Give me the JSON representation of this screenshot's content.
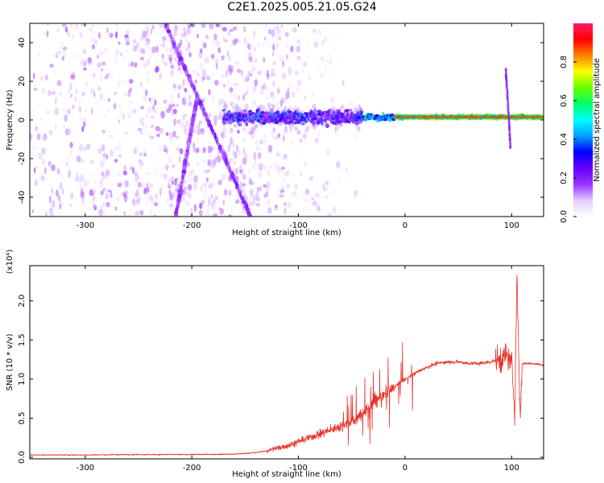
{
  "title": "C2E1.2025.005.21.05.G24",
  "colors": {
    "snr_line": "#e8322a",
    "spectrum_background": "#ffffff",
    "colormap": [
      "#ffffff",
      "#e6ccff",
      "#9933ff",
      "#6600ff",
      "#0000ff",
      "#00a0ff",
      "#00ffff",
      "#00ff66",
      "#66ff00",
      "#ffff00",
      "#ff8000",
      "#ff0000",
      "#ff1a66"
    ]
  },
  "chart_data": [
    {
      "type": "heatmap",
      "title": "",
      "xlabel": "Height of straight line (km)",
      "ylabel": "Frequency (Hz)",
      "xlim": [
        -352,
        130
      ],
      "ylim": [
        -50,
        50
      ],
      "xticks": [
        -300,
        -200,
        -100,
        0,
        100
      ],
      "xtick_labels": [
        "-300",
        "-200",
        "-100",
        "0",
        "100"
      ],
      "yticks": [
        -40,
        -20,
        0,
        20,
        40
      ],
      "ytick_labels": [
        "-40",
        "-20",
        "0",
        "20",
        "40"
      ],
      "colorbar": {
        "label": "Normalized spectral amplitude",
        "range": [
          0,
          1
        ],
        "ticks": [
          0.0,
          0.2,
          0.4,
          0.6,
          0.8
        ],
        "tick_labels": [
          "0.0",
          "0.2",
          "0.4",
          "0.6",
          "0.8"
        ]
      },
      "features": [
        {
          "name": "diffuse noise",
          "x_range": [
            -352,
            -130
          ],
          "freq_range": [
            -50,
            50
          ],
          "amplitude": 0.1
        },
        {
          "name": "diagonal streak",
          "x_start": -225,
          "freq_start": 50,
          "x_end": -145,
          "freq_end": -50,
          "amplitude": 0.15
        },
        {
          "name": "diagonal streak",
          "x_start": -195,
          "freq_start": 12,
          "x_end": -215,
          "freq_end": -50,
          "amplitude": 0.12
        },
        {
          "name": "main signal",
          "x_range": [
            -170,
            130
          ],
          "freq_center": 1.5,
          "amplitude": 0.9
        },
        {
          "name": "spike",
          "x": 97,
          "freq_range": [
            -14,
            26
          ],
          "amplitude": 0.2
        }
      ]
    },
    {
      "type": "line",
      "title": "",
      "xlabel": "Height of straight line (km)",
      "ylabel": "SNR (10 * v/v)",
      "y_multiplier_label": "(x10⁴)",
      "xlim": [
        -352,
        130
      ],
      "ylim": [
        -0.02,
        2.45
      ],
      "xticks": [
        -300,
        -200,
        -100,
        0,
        100
      ],
      "xtick_labels": [
        "-300",
        "-200",
        "-100",
        "0",
        "100"
      ],
      "yticks": [
        0.0,
        0.5,
        1.0,
        1.5,
        2.0
      ],
      "ytick_labels": [
        "0.0",
        "0.5",
        "1.0",
        "1.5",
        "2.0"
      ],
      "series": [
        {
          "x": [
            -352,
            -300,
            -250,
            -200,
            -160,
            -150,
            -140,
            -130,
            -120,
            -110,
            -100,
            -90,
            -80,
            -70,
            -60,
            -50,
            -45,
            -40,
            -35,
            -30,
            -25,
            -20,
            -15,
            -10,
            -5,
            0,
            10,
            20,
            30,
            40,
            50,
            60,
            70,
            80,
            90,
            95,
            100,
            103,
            105,
            108,
            110,
            120,
            130
          ],
          "y": [
            0.03,
            0.03,
            0.035,
            0.035,
            0.04,
            0.05,
            0.06,
            0.08,
            0.12,
            0.15,
            0.2,
            0.25,
            0.3,
            0.35,
            0.4,
            0.45,
            0.5,
            0.55,
            0.62,
            0.7,
            0.75,
            0.8,
            0.85,
            0.9,
            0.95,
            1.0,
            1.08,
            1.15,
            1.2,
            1.22,
            1.22,
            1.2,
            1.2,
            1.22,
            1.25,
            1.3,
            1.2,
            0.6,
            2.35,
            0.5,
            1.2,
            1.2,
            1.18
          ]
        }
      ]
    }
  ]
}
